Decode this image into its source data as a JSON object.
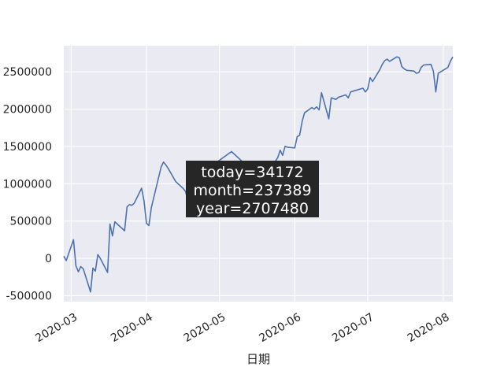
{
  "chart_data": {
    "type": "line",
    "title": "",
    "xlabel": "日期",
    "ylabel": "",
    "grid": true,
    "background_color": "#EAEAF2",
    "line_color": "#4C72B0",
    "x_ticks": [
      "2020-03",
      "2020-04",
      "2020-05",
      "2020-06",
      "2020-07",
      "2020-08"
    ],
    "y_ticks": [
      "-500000",
      "0",
      "500000",
      "1000000",
      "1500000",
      "2000000",
      "2500000"
    ],
    "xlim": [
      "2020-02-27",
      "2020-08-05"
    ],
    "ylim": [
      -580000,
      2850000
    ],
    "annotation": {
      "lines": [
        "today=34172",
        "month=237389",
        "year=2707480"
      ],
      "box_color": "#262626"
    },
    "series": [
      {
        "x": [
          "2020-02-27",
          "2020-02-28",
          "2020-03-02",
          "2020-03-03",
          "2020-03-04",
          "2020-03-05",
          "2020-03-06",
          "2020-03-09",
          "2020-03-10",
          "2020-03-11",
          "2020-03-12",
          "2020-03-13",
          "2020-03-16",
          "2020-03-17",
          "2020-03-18",
          "2020-03-19",
          "2020-03-20",
          "2020-03-23",
          "2020-03-24",
          "2020-03-25",
          "2020-03-26",
          "2020-03-27",
          "2020-03-30",
          "2020-03-31",
          "2020-04-01",
          "2020-04-02",
          "2020-04-03",
          "2020-04-07",
          "2020-04-08",
          "2020-04-09",
          "2020-04-10",
          "2020-04-13",
          "2020-04-14",
          "2020-04-15",
          "2020-04-16",
          "2020-04-17",
          "2020-04-20",
          "2020-04-21",
          "2020-04-22",
          "2020-04-23",
          "2020-04-24",
          "2020-04-27",
          "2020-04-28",
          "2020-04-29",
          "2020-04-30",
          "2020-05-06",
          "2020-05-11",
          "2020-05-18",
          "2020-05-25",
          "2020-05-26",
          "2020-05-27",
          "2020-05-28",
          "2020-05-29",
          "2020-06-01",
          "2020-06-02",
          "2020-06-03",
          "2020-06-04",
          "2020-06-05",
          "2020-06-08",
          "2020-06-09",
          "2020-06-10",
          "2020-06-11",
          "2020-06-12",
          "2020-06-15",
          "2020-06-16",
          "2020-06-17",
          "2020-06-18",
          "2020-06-19",
          "2020-06-22",
          "2020-06-23",
          "2020-06-24",
          "2020-06-29",
          "2020-06-30",
          "2020-07-01",
          "2020-07-02",
          "2020-07-03",
          "2020-07-06",
          "2020-07-07",
          "2020-07-08",
          "2020-07-09",
          "2020-07-10",
          "2020-07-13",
          "2020-07-14",
          "2020-07-15",
          "2020-07-16",
          "2020-07-17",
          "2020-07-20",
          "2020-07-21",
          "2020-07-22",
          "2020-07-23",
          "2020-07-24",
          "2020-07-27",
          "2020-07-28",
          "2020-07-29",
          "2020-07-30",
          "2020-07-31",
          "2020-08-03",
          "2020-08-04",
          "2020-08-05"
        ],
        "y": [
          30000,
          -30000,
          250000,
          -100000,
          -180000,
          -110000,
          -140000,
          -450000,
          -130000,
          -170000,
          50000,
          0,
          -190000,
          460000,
          300000,
          490000,
          460000,
          370000,
          690000,
          720000,
          710000,
          740000,
          940000,
          770000,
          470000,
          440000,
          680000,
          1220000,
          1290000,
          1250000,
          1200000,
          1030000,
          1000000,
          970000,
          940000,
          900000,
          570000,
          900000,
          1000000,
          1030000,
          1060000,
          1100000,
          1300000,
          1200000,
          1290000,
          1430000,
          1280000,
          1000000,
          1350000,
          1450000,
          1380000,
          1500000,
          1490000,
          1480000,
          1630000,
          1650000,
          1830000,
          1950000,
          2020000,
          2000000,
          2030000,
          1990000,
          2220000,
          1870000,
          2150000,
          2140000,
          2130000,
          2160000,
          2190000,
          2150000,
          2230000,
          2280000,
          2230000,
          2270000,
          2420000,
          2370000,
          2530000,
          2600000,
          2650000,
          2670000,
          2640000,
          2700000,
          2690000,
          2570000,
          2540000,
          2520000,
          2510000,
          2480000,
          2490000,
          2560000,
          2590000,
          2600000,
          2510000,
          2230000,
          2480000,
          2500000,
          2560000,
          2640000,
          2700000
        ]
      }
    ]
  }
}
